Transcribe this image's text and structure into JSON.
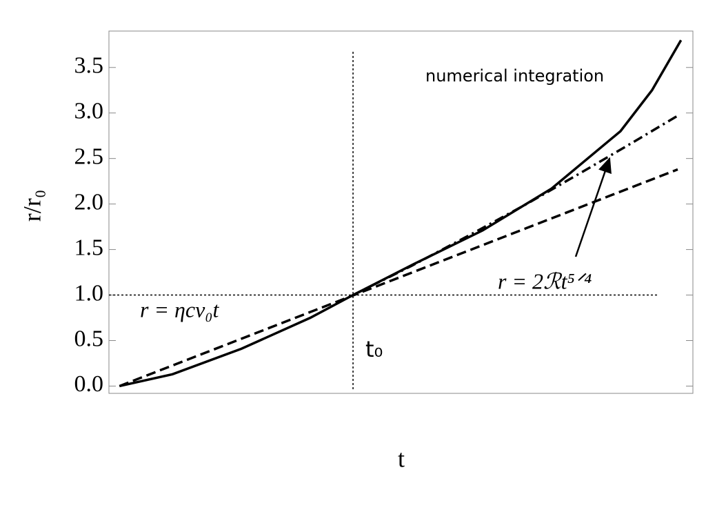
{
  "chart_data": {
    "type": "line",
    "xlabel": "t",
    "ylabel": "r/r₀",
    "xlim": [
      -0.045,
      2.455
    ],
    "ylim": [
      -0.08,
      3.9
    ],
    "yticks": [
      {
        "value": 0,
        "label": "0.0"
      },
      0.5,
      {
        "value": 1,
        "label": "1.0"
      },
      1.5,
      {
        "value": 2,
        "label": "2.0"
      },
      2.5,
      {
        "value": 3,
        "label": "3.0"
      },
      3.5
    ],
    "hline": 1,
    "vline": 1,
    "vline_label": "t₀",
    "series": [
      {
        "name": "numerical integration",
        "color": "#000000",
        "dash": "solid",
        "x": [
          0,
          0.227,
          0.522,
          0.817,
          1.0,
          1.26,
          1.555,
          1.85,
          2.145,
          2.28,
          2.404
        ],
        "values": [
          0,
          0.13,
          0.41,
          0.75,
          1.0,
          1.34,
          1.71,
          2.17,
          2.8,
          3.25,
          3.8
        ]
      },
      {
        "name": "r = ηcv₀t",
        "color": "#000000",
        "dash": "dashed",
        "x": [
          0,
          2.39
        ],
        "values": [
          0,
          2.38
        ]
      },
      {
        "name": "r = 2ℛt⁵ᐟ⁴",
        "color": "#000000",
        "dash": "dashdot",
        "x": [
          1.0,
          1.25,
          1.5,
          1.75,
          2.0,
          2.2,
          2.39
        ],
        "values": [
          1.0,
          1.32,
          1.66,
          2.01,
          2.38,
          2.68,
          2.97
        ]
      }
    ]
  }
}
